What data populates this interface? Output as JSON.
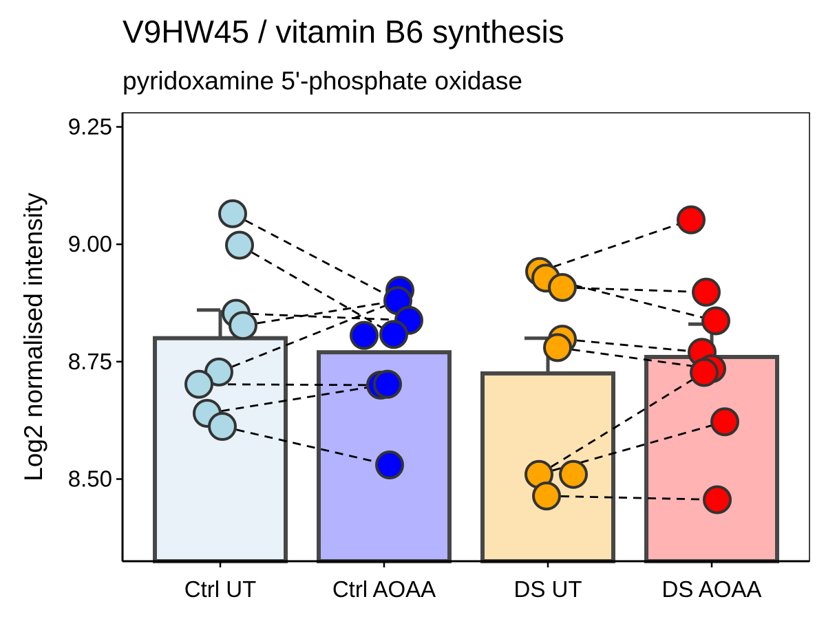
{
  "chart_data": {
    "type": "bar",
    "title": "V9HW45 / vitamin B6 synthesis",
    "subtitle": "pyridoxamine 5'-phosphate oxidase",
    "xlabel": "",
    "ylabel": "Log2 normalised intensity",
    "ylim": [
      8.325,
      9.28
    ],
    "yticks": [
      8.5,
      8.75,
      9.0,
      9.25
    ],
    "ytick_labels": [
      "8.50",
      "8.75",
      "9.00",
      "9.25"
    ],
    "categories": [
      "Ctrl UT",
      "Ctrl AOAA",
      "DS UT",
      "DS AOAA"
    ],
    "bar_values": [
      8.8,
      8.77,
      8.725,
      8.76
    ],
    "error_upper": [
      8.86,
      null,
      8.8,
      8.83
    ],
    "bar_fill_colors": [
      "#e8f2f8",
      "#b3b3ff",
      "#fde3b2",
      "#ffb3b3"
    ],
    "point_colors": [
      "#add8e6",
      "#0000ff",
      "#ffa500",
      "#ff0000"
    ],
    "points": [
      [
        9.065,
        8.998,
        8.853,
        8.827,
        8.728,
        8.702,
        8.64,
        8.612
      ],
      [
        8.902,
        8.88,
        8.838,
        8.808,
        8.806,
        8.7,
        8.702,
        8.53
      ],
      [
        8.942,
        8.928,
        8.908,
        8.798,
        8.78,
        8.51,
        8.51,
        8.464
      ],
      [
        9.052,
        8.898,
        8.837,
        8.77,
        8.735,
        8.727,
        8.622,
        8.456
      ]
    ],
    "paired_lines": [
      [
        9.065,
        8.88
      ],
      [
        8.998,
        8.808
      ],
      [
        8.827,
        8.88
      ],
      [
        8.853,
        8.838
      ],
      [
        8.728,
        8.88
      ],
      [
        8.702,
        8.7
      ],
      [
        8.64,
        8.702
      ],
      [
        8.612,
        8.53
      ],
      [
        8.942,
        9.052
      ],
      [
        8.908,
        8.898
      ],
      [
        8.928,
        8.837
      ],
      [
        8.798,
        8.77
      ],
      [
        8.78,
        8.735
      ],
      [
        8.51,
        8.727
      ],
      [
        8.51,
        8.622
      ],
      [
        8.464,
        8.456
      ]
    ],
    "grid": false,
    "legend": "none"
  }
}
